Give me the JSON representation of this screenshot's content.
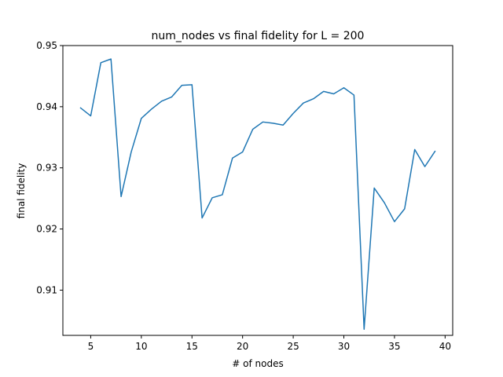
{
  "chart_data": {
    "type": "line",
    "title": "num_nodes vs final fidelity for L = 200",
    "xlabel": "# of nodes",
    "ylabel": "final fidelity",
    "xlim": [
      2.25,
      40.75
    ],
    "ylim": [
      0.9026,
      0.95
    ],
    "xticks": [
      5,
      10,
      15,
      20,
      25,
      30,
      35,
      40
    ],
    "xtick_labels": [
      "5",
      "10",
      "15",
      "20",
      "25",
      "30",
      "35",
      "40"
    ],
    "yticks": [
      0.91,
      0.92,
      0.93,
      0.94,
      0.95
    ],
    "ytick_labels": [
      "0.91",
      "0.92",
      "0.93",
      "0.94",
      "0.95"
    ],
    "grid": false,
    "series": [
      {
        "color": "#1f77b4",
        "x": [
          4,
          5,
          6,
          7,
          8,
          9,
          10,
          11,
          12,
          13,
          14,
          15,
          16,
          17,
          18,
          19,
          20,
          21,
          22,
          23,
          24,
          25,
          26,
          27,
          28,
          29,
          30,
          31,
          32,
          33,
          34,
          35,
          36,
          37,
          38,
          39
        ],
        "y": [
          0.9398,
          0.9385,
          0.9472,
          0.9478,
          0.9253,
          0.9326,
          0.9381,
          0.9396,
          0.9409,
          0.9416,
          0.9435,
          0.9436,
          0.9218,
          0.9251,
          0.9256,
          0.9316,
          0.9326,
          0.9363,
          0.9375,
          0.9373,
          0.937,
          0.9389,
          0.9406,
          0.9413,
          0.9425,
          0.9421,
          0.9431,
          0.9419,
          0.9036,
          0.9267,
          0.9243,
          0.9212,
          0.9233,
          0.933,
          0.9302,
          0.9327
        ]
      }
    ]
  }
}
